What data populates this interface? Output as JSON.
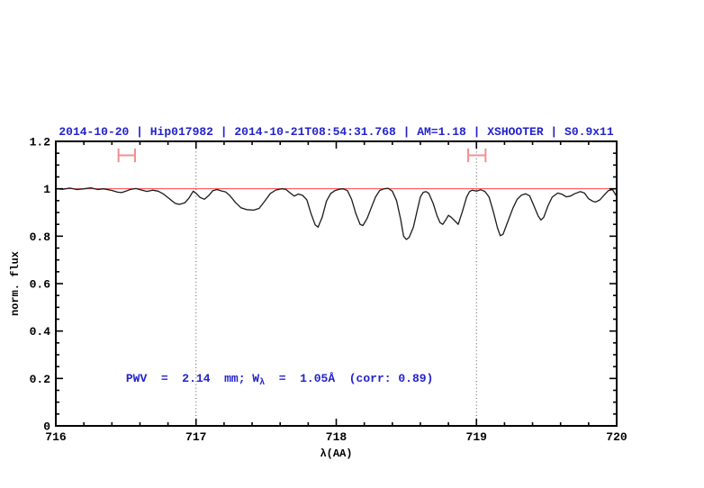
{
  "chart_data": {
    "type": "line",
    "title": "2014-10-20 | Hip017982 | 2014-10-21T08:54:31.768 | AM=1.18 | XSHOOTER | S0.9x11",
    "xlabel": "λ(AA)",
    "ylabel": "norm. flux",
    "xlim": [
      716,
      720
    ],
    "ylim": [
      0,
      1.2
    ],
    "grid": "off",
    "x_ticks": {
      "values": [
        716,
        717,
        718,
        719,
        720
      ],
      "labels": [
        "716",
        "717",
        "718",
        "719",
        "720"
      ],
      "minor_step": 0.2
    },
    "y_ticks": {
      "values": [
        0,
        0.2,
        0.4,
        0.6,
        0.8,
        1,
        1.2
      ],
      "labels": [
        "0",
        "0.2",
        "0.4",
        "0.6",
        "0.8",
        "1",
        "1.2"
      ],
      "minor_step": 0.05
    },
    "telluric_vlines": [
      717,
      719
    ],
    "continuum": {
      "y": 1.0
    },
    "range_markers": [
      {
        "x1": 716.447,
        "x2": 716.565,
        "y": 1.141,
        "cap_halfheight_flux": 0.029
      },
      {
        "x1": 718.941,
        "x2": 719.065,
        "y": 1.141,
        "cap_halfheight_flux": 0.029
      }
    ],
    "annotation": {
      "prefix": "PWV  =  2.14  mm; W",
      "sub": "λ",
      "suffix": "  =  1.05Å  (corr: 0.89)",
      "x": 716.5,
      "y": 0.186
    },
    "colors": {
      "text_blue": "#2222cc",
      "continuum_red": "#ff4444",
      "marker_salmon": "#f29090",
      "vline_gray": "#555555",
      "spectrum": "#1a1a1a",
      "frame": "#000000",
      "background": "#ffffff"
    },
    "series": [
      {
        "name": "spectrum",
        "points": [
          [
            716.0,
            1.0
          ],
          [
            716.05,
            0.998
          ],
          [
            716.1,
            1.003
          ],
          [
            716.15,
            0.997
          ],
          [
            716.2,
            1.0
          ],
          [
            716.25,
            1.004
          ],
          [
            716.3,
            0.997
          ],
          [
            716.34,
            1.0
          ],
          [
            716.4,
            0.993
          ],
          [
            716.44,
            0.986
          ],
          [
            716.47,
            0.984
          ],
          [
            716.5,
            0.99
          ],
          [
            716.53,
            0.997
          ],
          [
            716.57,
            1.001
          ],
          [
            716.61,
            0.995
          ],
          [
            716.65,
            0.989
          ],
          [
            716.69,
            0.994
          ],
          [
            716.73,
            0.99
          ],
          [
            716.77,
            0.977
          ],
          [
            716.81,
            0.958
          ],
          [
            716.85,
            0.939
          ],
          [
            716.88,
            0.934
          ],
          [
            716.92,
            0.941
          ],
          [
            716.95,
            0.961
          ],
          [
            716.98,
            0.99
          ],
          [
            717.0,
            0.981
          ],
          [
            717.03,
            0.963
          ],
          [
            717.06,
            0.956
          ],
          [
            717.09,
            0.971
          ],
          [
            717.12,
            0.992
          ],
          [
            717.15,
            0.997
          ],
          [
            717.18,
            0.991
          ],
          [
            717.21,
            0.987
          ],
          [
            717.24,
            0.972
          ],
          [
            717.28,
            0.943
          ],
          [
            717.32,
            0.92
          ],
          [
            717.36,
            0.912
          ],
          [
            717.41,
            0.91
          ],
          [
            717.45,
            0.917
          ],
          [
            717.49,
            0.948
          ],
          [
            717.53,
            0.98
          ],
          [
            717.57,
            0.995
          ],
          [
            717.61,
            1.0
          ],
          [
            717.64,
            0.998
          ],
          [
            717.67,
            0.983
          ],
          [
            717.7,
            0.969
          ],
          [
            717.73,
            0.978
          ],
          [
            717.76,
            0.972
          ],
          [
            717.79,
            0.954
          ],
          [
            717.82,
            0.895
          ],
          [
            717.85,
            0.848
          ],
          [
            717.87,
            0.838
          ],
          [
            717.9,
            0.88
          ],
          [
            717.93,
            0.948
          ],
          [
            717.96,
            0.98
          ],
          [
            717.99,
            0.992
          ],
          [
            718.02,
            0.998
          ],
          [
            718.05,
            1.0
          ],
          [
            718.08,
            0.992
          ],
          [
            718.11,
            0.955
          ],
          [
            718.14,
            0.895
          ],
          [
            718.17,
            0.85
          ],
          [
            718.19,
            0.845
          ],
          [
            718.22,
            0.875
          ],
          [
            718.25,
            0.92
          ],
          [
            718.28,
            0.965
          ],
          [
            718.31,
            0.993
          ],
          [
            718.34,
            1.0
          ],
          [
            718.37,
            1.002
          ],
          [
            718.4,
            0.99
          ],
          [
            718.43,
            0.95
          ],
          [
            718.46,
            0.87
          ],
          [
            718.48,
            0.8
          ],
          [
            718.5,
            0.786
          ],
          [
            718.52,
            0.795
          ],
          [
            718.55,
            0.838
          ],
          [
            718.58,
            0.915
          ],
          [
            718.6,
            0.966
          ],
          [
            718.62,
            0.985
          ],
          [
            718.64,
            0.988
          ],
          [
            718.66,
            0.981
          ],
          [
            718.69,
            0.94
          ],
          [
            718.72,
            0.885
          ],
          [
            718.74,
            0.857
          ],
          [
            718.76,
            0.85
          ],
          [
            718.78,
            0.868
          ],
          [
            718.8,
            0.888
          ],
          [
            718.82,
            0.88
          ],
          [
            718.85,
            0.862
          ],
          [
            718.87,
            0.85
          ],
          [
            718.9,
            0.905
          ],
          [
            718.93,
            0.965
          ],
          [
            718.95,
            0.988
          ],
          [
            718.97,
            0.994
          ],
          [
            719.0,
            0.99
          ],
          [
            719.03,
            0.996
          ],
          [
            719.06,
            0.989
          ],
          [
            719.09,
            0.965
          ],
          [
            719.12,
            0.905
          ],
          [
            719.15,
            0.835
          ],
          [
            719.17,
            0.802
          ],
          [
            719.19,
            0.808
          ],
          [
            719.22,
            0.856
          ],
          [
            719.26,
            0.918
          ],
          [
            719.29,
            0.955
          ],
          [
            719.32,
            0.973
          ],
          [
            719.35,
            0.979
          ],
          [
            719.38,
            0.97
          ],
          [
            719.41,
            0.928
          ],
          [
            719.44,
            0.885
          ],
          [
            719.46,
            0.868
          ],
          [
            719.48,
            0.88
          ],
          [
            719.51,
            0.928
          ],
          [
            719.54,
            0.965
          ],
          [
            719.58,
            0.982
          ],
          [
            719.61,
            0.977
          ],
          [
            719.64,
            0.966
          ],
          [
            719.67,
            0.969
          ],
          [
            719.7,
            0.979
          ],
          [
            719.74,
            0.988
          ],
          [
            719.77,
            0.982
          ],
          [
            719.8,
            0.958
          ],
          [
            719.83,
            0.947
          ],
          [
            719.85,
            0.944
          ],
          [
            719.88,
            0.953
          ],
          [
            719.91,
            0.973
          ],
          [
            719.94,
            0.992
          ],
          [
            719.97,
            0.997
          ],
          [
            720.0,
            0.968
          ]
        ]
      }
    ]
  }
}
